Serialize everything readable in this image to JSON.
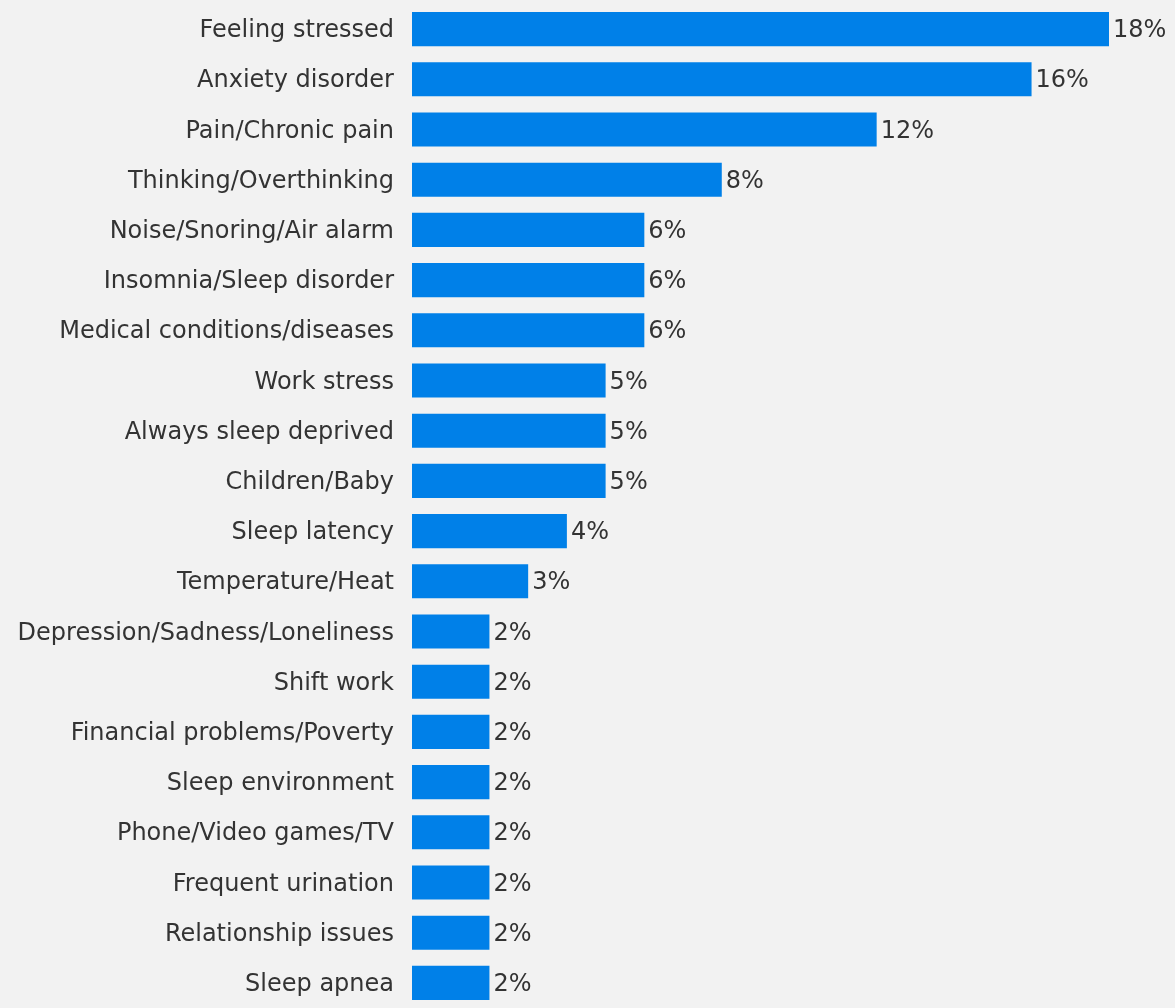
{
  "chart_data": {
    "type": "bar",
    "orientation": "horizontal",
    "categories": [
      "Feeling stressed",
      "Anxiety disorder",
      "Pain/Chronic pain",
      "Thinking/Overthinking",
      "Noise/Snoring/Air alarm",
      "Insomnia/Sleep disorder",
      "Medical conditions/diseases",
      "Work stress",
      "Always sleep deprived",
      "Children/Baby",
      "Sleep latency",
      "Temperature/Heat",
      "Depression/Sadness/Loneliness",
      "Shift work",
      "Financial problems/Poverty",
      "Sleep environment",
      "Phone/Video games/TV",
      "Frequent urination",
      "Relationship issues",
      "Sleep apnea"
    ],
    "values": [
      18,
      16,
      12,
      8,
      6,
      6,
      6,
      5,
      5,
      5,
      4,
      3,
      2,
      2,
      2,
      2,
      2,
      2,
      2,
      2
    ],
    "value_labels": [
      "18%",
      "16%",
      "12%",
      "8%",
      "6%",
      "6%",
      "6%",
      "5%",
      "5%",
      "5%",
      "4%",
      "3%",
      "2%",
      "2%",
      "2%",
      "2%",
      "2%",
      "2%",
      "2%",
      "2%"
    ],
    "color": "#0080e8",
    "tick_labels": "y"
  }
}
